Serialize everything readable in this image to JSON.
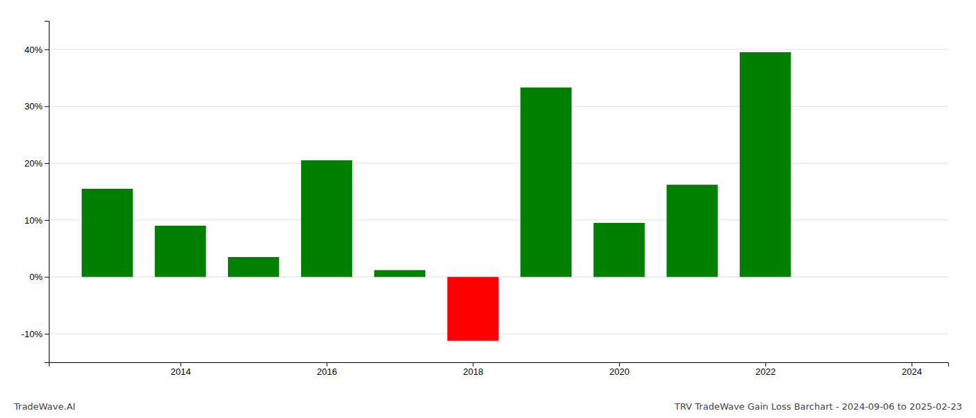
{
  "chart_data": {
    "type": "bar",
    "title": "TRV TradeWave Gain Loss Barchart - 2024-09-06 to 2025-02-23",
    "annotations": [
      "TradeWave.AI"
    ],
    "x": [
      2013,
      2014,
      2015,
      2016,
      2017,
      2018,
      2019,
      2020,
      2021,
      2022,
      2023
    ],
    "values": [
      15.5,
      9.0,
      3.5,
      20.5,
      1.2,
      -11.2,
      33.3,
      9.5,
      16.2,
      39.5,
      0.0
    ],
    "colors": [
      "#008000",
      "#008000",
      "#008000",
      "#008000",
      "#008000",
      "#ff0000",
      "#008000",
      "#008000",
      "#008000",
      "#008000",
      "#008000"
    ],
    "xlim": [
      2012.2,
      2024.5
    ],
    "xticks": [
      2014,
      2016,
      2018,
      2020,
      2022,
      2024
    ],
    "ylim": [
      -15,
      45
    ],
    "yticks": [
      {
        "value": -10,
        "label": "-10%"
      },
      {
        "value": 0,
        "label": "0%"
      },
      {
        "value": 10,
        "label": "10%"
      },
      {
        "value": 20,
        "label": "20%"
      },
      {
        "value": 30,
        "label": "30%"
      },
      {
        "value": 40,
        "label": "40%"
      }
    ],
    "grid": true
  }
}
